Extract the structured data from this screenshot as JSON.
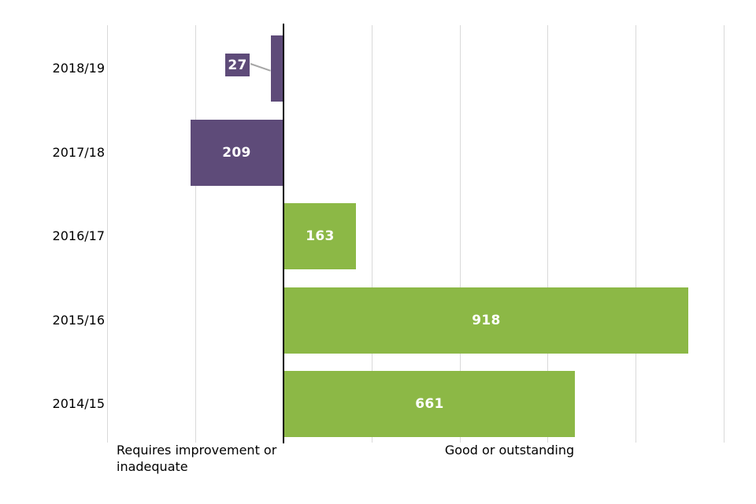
{
  "chart_data": {
    "type": "bar",
    "orientation": "horizontal",
    "diverging": true,
    "categories": [
      "2018/19",
      "2017/18",
      "2016/17",
      "2015/16",
      "2014/15"
    ],
    "rows": [
      {
        "year": "2018/19",
        "value": 27,
        "side": "negative",
        "label": "27",
        "callout": true
      },
      {
        "year": "2017/18",
        "value": 209,
        "side": "negative",
        "label": "209",
        "callout": false
      },
      {
        "year": "2016/17",
        "value": 163,
        "side": "positive",
        "label": "163",
        "callout": false
      },
      {
        "year": "2015/16",
        "value": 918,
        "side": "positive",
        "label": "918",
        "callout": false
      },
      {
        "year": "2014/15",
        "value": 661,
        "side": "positive",
        "label": "661",
        "callout": false
      }
    ],
    "series": [
      {
        "name": "Requires improvement or inadequate",
        "color": "#5e4b79"
      },
      {
        "name": "Good or outstanding",
        "color": "#8cb846"
      }
    ],
    "axis_labels": {
      "negative": "Requires improvement or\ninadequate",
      "positive": "Good or outstanding"
    },
    "x_axis": {
      "min": -400,
      "max": 1030,
      "gridline_step": 200,
      "grid": true,
      "tick_labels_visible": false
    },
    "title": "",
    "legend_position": "none"
  },
  "colors": {
    "negative_bar": "#5e4b79",
    "positive_bar": "#8cb846",
    "gridline": "#d9d9d9",
    "axis_line": "#000000",
    "leader_line": "#a6a6a6",
    "value_text": "#ffffff",
    "label_text": "#000000",
    "background": "#ffffff"
  }
}
